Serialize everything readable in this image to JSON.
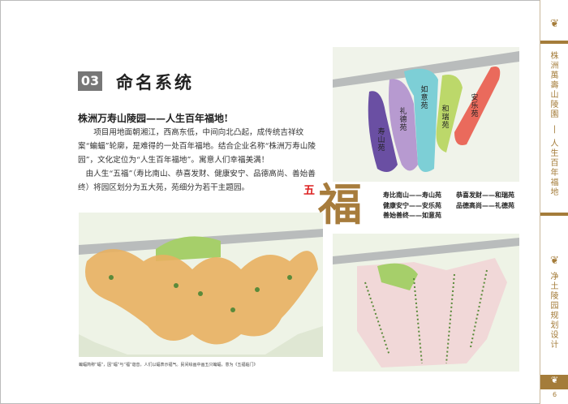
{
  "section": {
    "number": "03",
    "title": "命名系统"
  },
  "subtitle": "株洲万寿山陵园——人生百年福地!",
  "paragraphs": [
    "项目用地面朝湘江，西高东低，中间向北凸起，成传统吉祥纹案“蝙蝠”轮廓，是难得的一处百年福地。结合企业名称“株洲万寿山陵园”，文化定位为“人生百年福地”。寓意人们幸福美满！",
    "由人生“五福”（寿比南山、恭喜发财、健康安宁、品德高尚、善始善终）将园区划分为五大苑，苑细分为若干主题园。"
  ],
  "caption": "蝙蝠简称“蝠”，因“蝠”与“福”谐音，人们以蝠表示福气。民间绘画中画五只蝙蝠，意为《五福临门》",
  "wufu": {
    "small": "五",
    "big": "福"
  },
  "legend": [
    [
      "寿比南山——寿山苑",
      "恭喜发财——和瑞苑"
    ],
    [
      "健康安宁——安乐苑",
      "品德高尚——礼德苑"
    ],
    [
      "善始善终——如意苑",
      ""
    ]
  ],
  "zones": [
    {
      "label": "寿山苑",
      "color": "#6a4fa3"
    },
    {
      "label": "礼德苑",
      "color": "#b79ad0"
    },
    {
      "label": "如意苑",
      "color": "#7dcfd6"
    },
    {
      "label": "和瑞苑",
      "color": "#bcd86a"
    },
    {
      "label": "安乐苑",
      "color": "#ea6a5c"
    }
  ],
  "sidebar": {
    "title1": "株洲萬壽山陵園",
    "title2": "人生百年福地",
    "title3": "净土陵园规划设计",
    "page": "6"
  },
  "colors": {
    "accent": "#a47c3a",
    "bat": "#e8b060"
  }
}
